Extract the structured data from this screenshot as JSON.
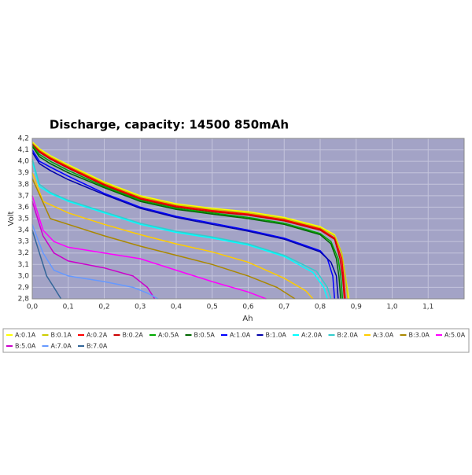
{
  "chart_data": {
    "type": "line",
    "title": "Discharge, capacity:  14500 850mAh",
    "x_label": "Ah",
    "y_label": "Volt",
    "xlim": [
      0,
      1.2
    ],
    "ylim": [
      2.8,
      4.2
    ],
    "grid": true,
    "xticks": [
      {
        "value": 0,
        "label": "0,0"
      },
      {
        "value": 0.1,
        "label": "0,1"
      },
      {
        "value": 0.2,
        "label": "0,2"
      },
      {
        "value": 0.3,
        "label": "0,3"
      },
      {
        "value": 0.4,
        "label": "0,4"
      },
      {
        "value": 0.5,
        "label": "0,5"
      },
      {
        "value": 0.6,
        "label": "0,6"
      },
      {
        "value": 0.7,
        "label": "0,7"
      },
      {
        "value": 0.8,
        "label": "0,8"
      },
      {
        "value": 0.9,
        "label": "0,9"
      },
      {
        "value": 1.0,
        "label": "1,0"
      },
      {
        "value": 1.1,
        "label": "1,1"
      }
    ],
    "yticks": [
      {
        "value": 2.8,
        "label": "2,8"
      },
      {
        "value": 2.9,
        "label": "2,9"
      },
      {
        "value": 3.0,
        "label": "3,0"
      },
      {
        "value": 3.1,
        "label": "3,1"
      },
      {
        "value": 3.2,
        "label": "3,2"
      },
      {
        "value": 3.3,
        "label": "3,3"
      },
      {
        "value": 3.4,
        "label": "3,4"
      },
      {
        "value": 3.5,
        "label": "3,5"
      },
      {
        "value": 3.6,
        "label": "3,6"
      },
      {
        "value": 3.7,
        "label": "3,7"
      },
      {
        "value": 3.8,
        "label": "3,8"
      },
      {
        "value": 3.9,
        "label": "3,9"
      },
      {
        "value": 4.0,
        "label": "4,0"
      },
      {
        "value": 4.1,
        "label": "4,1"
      },
      {
        "value": 4.2,
        "label": "4,2"
      }
    ],
    "series": [
      {
        "name": "A:0.1A",
        "color": "#ffff00",
        "x": [
          0,
          0.02,
          0.05,
          0.1,
          0.2,
          0.3,
          0.4,
          0.5,
          0.6,
          0.7,
          0.8,
          0.84,
          0.86,
          0.87,
          0.88
        ],
        "values": [
          4.17,
          4.11,
          4.05,
          3.97,
          3.82,
          3.7,
          3.63,
          3.59,
          3.56,
          3.51,
          3.43,
          3.36,
          3.2,
          3.0,
          2.8
        ]
      },
      {
        "name": "B:0.1A",
        "color": "#cccc00",
        "x": [
          0,
          0.02,
          0.05,
          0.1,
          0.2,
          0.3,
          0.4,
          0.5,
          0.6,
          0.7,
          0.8,
          0.84,
          0.86,
          0.87,
          0.877
        ],
        "values": [
          4.16,
          4.1,
          4.04,
          3.96,
          3.81,
          3.69,
          3.62,
          3.58,
          3.55,
          3.5,
          3.42,
          3.35,
          3.2,
          3.0,
          2.8
        ]
      },
      {
        "name": "A:0.2A",
        "color": "#ff0000",
        "x": [
          0,
          0.02,
          0.05,
          0.1,
          0.2,
          0.3,
          0.4,
          0.5,
          0.6,
          0.7,
          0.8,
          0.84,
          0.86,
          0.865,
          0.87
        ],
        "values": [
          4.15,
          4.09,
          4.03,
          3.95,
          3.8,
          3.68,
          3.61,
          3.57,
          3.54,
          3.49,
          3.41,
          3.33,
          3.15,
          3.0,
          2.8
        ]
      },
      {
        "name": "B:0.2A",
        "color": "#cc0000",
        "x": [
          0,
          0.02,
          0.05,
          0.1,
          0.2,
          0.3,
          0.4,
          0.5,
          0.6,
          0.7,
          0.8,
          0.84,
          0.855,
          0.862,
          0.867
        ],
        "values": [
          4.15,
          4.08,
          4.02,
          3.94,
          3.79,
          3.67,
          3.6,
          3.56,
          3.53,
          3.48,
          3.4,
          3.32,
          3.15,
          3.0,
          2.8
        ]
      },
      {
        "name": "A:0.5A",
        "color": "#00aa00",
        "x": [
          0,
          0.02,
          0.05,
          0.1,
          0.2,
          0.3,
          0.4,
          0.5,
          0.6,
          0.7,
          0.8,
          0.83,
          0.85,
          0.857,
          0.862
        ],
        "values": [
          4.14,
          4.06,
          4.0,
          3.92,
          3.78,
          3.66,
          3.59,
          3.55,
          3.51,
          3.46,
          3.37,
          3.3,
          3.15,
          3.0,
          2.8
        ]
      },
      {
        "name": "B:0.5A",
        "color": "#006600",
        "x": [
          0,
          0.02,
          0.05,
          0.1,
          0.2,
          0.3,
          0.4,
          0.5,
          0.6,
          0.7,
          0.8,
          0.83,
          0.845,
          0.852,
          0.857
        ],
        "values": [
          4.13,
          4.04,
          3.98,
          3.9,
          3.77,
          3.65,
          3.58,
          3.54,
          3.5,
          3.45,
          3.36,
          3.28,
          3.15,
          3.0,
          2.8
        ]
      },
      {
        "name": "A:1.0A",
        "color": "#0000ff",
        "x": [
          0,
          0.02,
          0.05,
          0.1,
          0.2,
          0.3,
          0.4,
          0.5,
          0.6,
          0.7,
          0.8,
          0.82,
          0.835,
          0.84
        ],
        "values": [
          4.1,
          4.0,
          3.95,
          3.87,
          3.72,
          3.6,
          3.52,
          3.46,
          3.4,
          3.33,
          3.22,
          3.15,
          3.0,
          2.8
        ]
      },
      {
        "name": "B:1.0A",
        "color": "#0000aa",
        "x": [
          0,
          0.02,
          0.05,
          0.1,
          0.2,
          0.3,
          0.4,
          0.5,
          0.6,
          0.7,
          0.8,
          0.83,
          0.845,
          0.85
        ],
        "values": [
          4.08,
          3.98,
          3.92,
          3.84,
          3.71,
          3.59,
          3.51,
          3.45,
          3.39,
          3.32,
          3.21,
          3.12,
          3.0,
          2.8
        ]
      },
      {
        "name": "A:2.0A",
        "color": "#00ffff",
        "x": [
          0,
          0.02,
          0.05,
          0.1,
          0.2,
          0.3,
          0.4,
          0.5,
          0.6,
          0.7,
          0.78,
          0.81,
          0.82
        ],
        "values": [
          4.0,
          3.78,
          3.72,
          3.65,
          3.55,
          3.45,
          3.38,
          3.33,
          3.27,
          3.17,
          3.03,
          2.9,
          2.8
        ]
      },
      {
        "name": "B:2.0A",
        "color": "#33cccc",
        "x": [
          0,
          0.02,
          0.05,
          0.1,
          0.2,
          0.3,
          0.4,
          0.5,
          0.6,
          0.7,
          0.79,
          0.82,
          0.83
        ],
        "values": [
          4.02,
          3.8,
          3.73,
          3.66,
          3.56,
          3.46,
          3.39,
          3.34,
          3.28,
          3.18,
          3.04,
          2.9,
          2.8
        ]
      },
      {
        "name": "A:3.0A",
        "color": "#ffcc00",
        "x": [
          0,
          0.03,
          0.1,
          0.2,
          0.3,
          0.4,
          0.5,
          0.6,
          0.7,
          0.76,
          0.78
        ],
        "values": [
          3.9,
          3.65,
          3.55,
          3.45,
          3.36,
          3.28,
          3.21,
          3.12,
          2.98,
          2.87,
          2.8
        ]
      },
      {
        "name": "B:3.0A",
        "color": "#aa8800",
        "x": [
          0,
          0.05,
          0.1,
          0.2,
          0.3,
          0.4,
          0.5,
          0.6,
          0.68,
          0.73
        ],
        "values": [
          3.85,
          3.5,
          3.45,
          3.35,
          3.26,
          3.18,
          3.1,
          3.0,
          2.9,
          2.8
        ]
      },
      {
        "name": "A:5.0A",
        "color": "#ff00ff",
        "x": [
          0,
          0.03,
          0.06,
          0.1,
          0.2,
          0.3,
          0.4,
          0.5,
          0.6,
          0.65
        ],
        "values": [
          3.7,
          3.4,
          3.3,
          3.25,
          3.2,
          3.15,
          3.05,
          2.95,
          2.86,
          2.8
        ]
      },
      {
        "name": "B:5.0A",
        "color": "#cc00cc",
        "x": [
          0,
          0.03,
          0.06,
          0.1,
          0.2,
          0.28,
          0.32,
          0.34
        ],
        "values": [
          3.65,
          3.35,
          3.2,
          3.13,
          3.07,
          3.0,
          2.9,
          2.8
        ]
      },
      {
        "name": "A:7.0A",
        "color": "#6699ff",
        "x": [
          0,
          0.03,
          0.06,
          0.1,
          0.2,
          0.28,
          0.32,
          0.35
        ],
        "values": [
          3.45,
          3.2,
          3.05,
          3.0,
          2.95,
          2.9,
          2.85,
          2.8
        ]
      },
      {
        "name": "B:7.0A",
        "color": "#336699",
        "x": [
          0,
          0.02,
          0.04,
          0.06,
          0.08
        ],
        "values": [
          3.4,
          3.2,
          3.0,
          2.9,
          2.8
        ]
      }
    ]
  }
}
